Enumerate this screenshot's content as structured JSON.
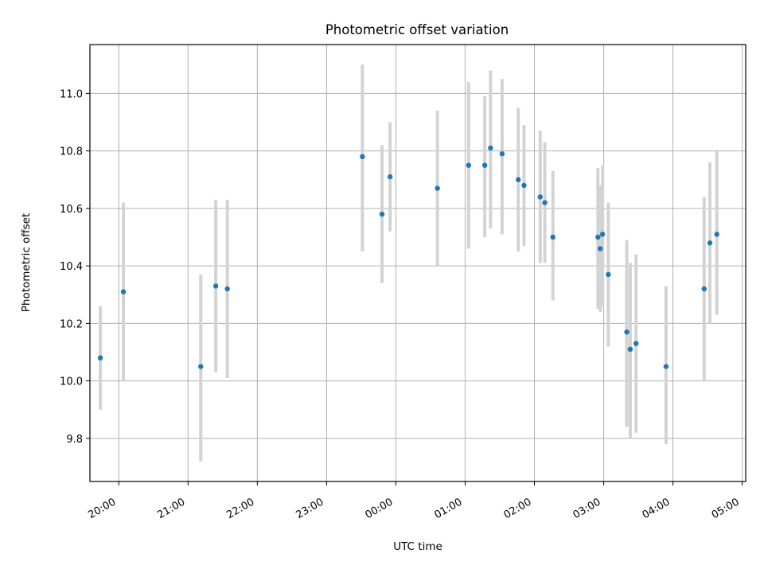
{
  "chart_data": {
    "type": "scatter",
    "title": "Photometric offset variation",
    "xlabel": "UTC time",
    "ylabel": "Photometric offset",
    "x_axis": "time",
    "xlim": [
      "19:35",
      "05:03"
    ],
    "ylim": [
      9.65,
      11.17
    ],
    "xticks": [
      "20:00",
      "21:00",
      "22:00",
      "23:00",
      "00:00",
      "01:00",
      "02:00",
      "03:00",
      "04:00",
      "05:00"
    ],
    "yticks": [
      "9.8",
      "10.0",
      "10.2",
      "10.4",
      "10.6",
      "10.8",
      "11.0"
    ],
    "grid": true,
    "legend": "none",
    "point_color": "#1f77b4",
    "errorbar_color": "#d3d3d3",
    "series": [
      {
        "points": [
          {
            "t": "19:44",
            "y": 10.08,
            "lo": 9.9,
            "hi": 10.26
          },
          {
            "t": "20:04",
            "y": 10.31,
            "lo": 10.0,
            "hi": 10.62
          },
          {
            "t": "21:11",
            "y": 10.05,
            "lo": 9.72,
            "hi": 10.37
          },
          {
            "t": "21:24",
            "y": 10.33,
            "lo": 10.03,
            "hi": 10.63
          },
          {
            "t": "21:34",
            "y": 10.32,
            "lo": 10.01,
            "hi": 10.63
          },
          {
            "t": "23:31",
            "y": 10.78,
            "lo": 10.45,
            "hi": 11.1
          },
          {
            "t": "23:48",
            "y": 10.58,
            "lo": 10.34,
            "hi": 10.82
          },
          {
            "t": "23:55",
            "y": 10.71,
            "lo": 10.52,
            "hi": 10.9
          },
          {
            "t": "00:36",
            "y": 10.67,
            "lo": 10.4,
            "hi": 10.94
          },
          {
            "t": "01:03",
            "y": 10.75,
            "lo": 10.46,
            "hi": 11.04
          },
          {
            "t": "01:17",
            "y": 10.75,
            "lo": 10.5,
            "hi": 10.99
          },
          {
            "t": "01:22",
            "y": 10.81,
            "lo": 10.53,
            "hi": 11.08
          },
          {
            "t": "01:32",
            "y": 10.79,
            "lo": 10.51,
            "hi": 11.05
          },
          {
            "t": "01:46",
            "y": 10.7,
            "lo": 10.45,
            "hi": 10.95
          },
          {
            "t": "01:51",
            "y": 10.68,
            "lo": 10.47,
            "hi": 10.89
          },
          {
            "t": "02:05",
            "y": 10.64,
            "lo": 10.41,
            "hi": 10.87
          },
          {
            "t": "02:09",
            "y": 10.62,
            "lo": 10.41,
            "hi": 10.83
          },
          {
            "t": "02:16",
            "y": 10.5,
            "lo": 10.28,
            "hi": 10.73
          },
          {
            "t": "02:55",
            "y": 10.5,
            "lo": 10.25,
            "hi": 10.74
          },
          {
            "t": "02:57",
            "y": 10.46,
            "lo": 10.24,
            "hi": 10.68
          },
          {
            "t": "02:59",
            "y": 10.51,
            "lo": 10.26,
            "hi": 10.75
          },
          {
            "t": "03:04",
            "y": 10.37,
            "lo": 10.12,
            "hi": 10.62
          },
          {
            "t": "03:20",
            "y": 10.17,
            "lo": 9.84,
            "hi": 10.49
          },
          {
            "t": "03:23",
            "y": 10.11,
            "lo": 9.8,
            "hi": 10.41
          },
          {
            "t": "03:28",
            "y": 10.13,
            "lo": 9.82,
            "hi": 10.44
          },
          {
            "t": "03:54",
            "y": 10.05,
            "lo": 9.78,
            "hi": 10.33
          },
          {
            "t": "04:27",
            "y": 10.32,
            "lo": 10.0,
            "hi": 10.64
          },
          {
            "t": "04:32",
            "y": 10.48,
            "lo": 10.2,
            "hi": 10.76
          },
          {
            "t": "04:38",
            "y": 10.51,
            "lo": 10.23,
            "hi": 10.8
          }
        ]
      }
    ]
  }
}
